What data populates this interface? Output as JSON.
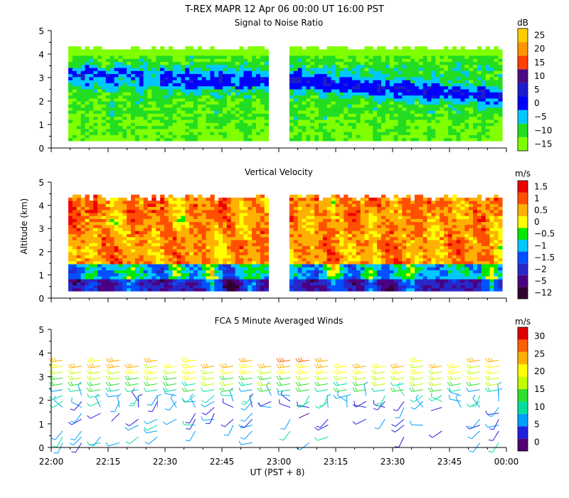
{
  "figure": {
    "title": "T-REX  MAPR 12 Apr 06  00:00 UT  16:00  PST",
    "ylabel": "Altitude (km)",
    "xlabel": "UT  (PST + 8)",
    "x_ticks": [
      "22:00",
      "22:15",
      "22:30",
      "22:45",
      "23:00",
      "23:15",
      "23:30",
      "23:45",
      "00:00"
    ],
    "y_ticks": [
      "0",
      "1",
      "2",
      "3",
      "4",
      "5"
    ]
  },
  "colors": {
    "snr": [
      "#80ff00",
      "#22dd22",
      "#00c8ff",
      "#0000ff",
      "#1c1ccc",
      "#4b0a80",
      "#ff4000",
      "#ff9600",
      "#ffd000"
    ],
    "vv": [
      "#300030",
      "#4b0082",
      "#2828c8",
      "#0050ff",
      "#00c8ff",
      "#00e800",
      "#ffff00",
      "#ffb000",
      "#ff5000",
      "#ee0000"
    ],
    "winds": [
      "#500070",
      "#2020e0",
      "#00a0ff",
      "#00e0a0",
      "#30e030",
      "#c0ff00",
      "#ffff00",
      "#ffb000",
      "#ff6000",
      "#e00000"
    ]
  },
  "chart_data": [
    {
      "type": "heatmap",
      "title": "Signal to Noise Ratio",
      "colorbar_unit": "dB",
      "colorbar_ticks": [
        "25",
        "20",
        "15",
        "10",
        "5",
        "0",
        "−5",
        "−10",
        "−15"
      ],
      "value_range": [
        -17,
        30
      ],
      "x_range": [
        0,
        120
      ],
      "ylim": [
        0,
        5
      ],
      "data_alt_range": [
        0.3,
        4.2
      ],
      "data_gap_minutes": [
        57,
        62
      ]
    },
    {
      "type": "heatmap",
      "title": "Vertical Velocity",
      "colorbar_unit": "m/s",
      "colorbar_ticks": [
        "1.5",
        "1",
        "0.5",
        "0",
        "−0.5",
        "−1",
        "−1.5",
        "−2",
        "−5",
        "−12"
      ],
      "value_range": [
        -12,
        2
      ],
      "x_range": [
        0,
        120
      ],
      "ylim": [
        0,
        5
      ],
      "data_alt_range": [
        0.3,
        4.3
      ],
      "data_gap_minutes": [
        57,
        62
      ]
    },
    {
      "type": "scatter",
      "title": "FCA 5 Minute Averaged Winds",
      "colorbar_unit": "m/s",
      "colorbar_ticks": [
        "30",
        "25",
        "20",
        "15",
        "10",
        "5",
        "0"
      ],
      "value_range": [
        0,
        32
      ],
      "x_range": [
        0,
        120
      ],
      "ylim": [
        0,
        5
      ],
      "profile_times_min": [
        3,
        8,
        13,
        18,
        23,
        28,
        33,
        38,
        43,
        48,
        53,
        58,
        63,
        68,
        73,
        78,
        83,
        88,
        93,
        98,
        103,
        108,
        113,
        118
      ],
      "speed_by_altitude_ms": [
        [
          0.5,
          8
        ],
        [
          1.5,
          6
        ],
        [
          2.0,
          8
        ],
        [
          2.5,
          12
        ],
        [
          3.0,
          18
        ],
        [
          3.5,
          22
        ],
        [
          4.0,
          26
        ]
      ],
      "direction_deg_upper": 260
    }
  ]
}
